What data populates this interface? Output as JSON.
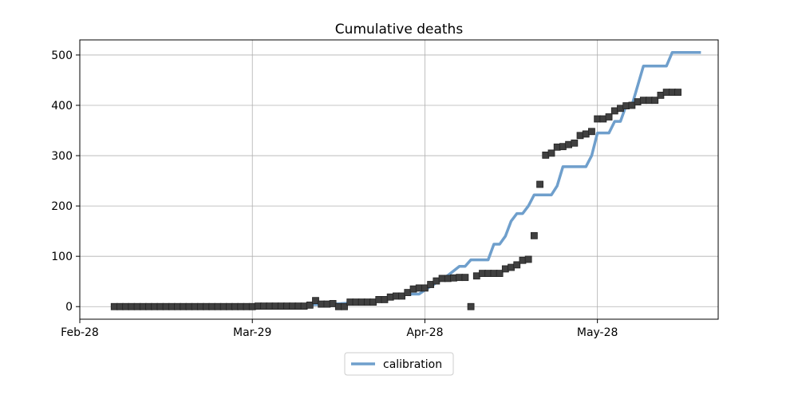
{
  "chart_data": {
    "type": "line",
    "title": "Cumulative deaths",
    "xlabel": "",
    "ylabel": "",
    "x_ticks": [
      {
        "date": "2020-02-28",
        "label": "Feb-28"
      },
      {
        "date": "2020-03-29",
        "label": "Mar-29"
      },
      {
        "date": "2020-04-28",
        "label": "Apr-28"
      },
      {
        "date": "2020-05-28",
        "label": "May-28"
      }
    ],
    "xlim": [
      "2020-02-28",
      "2020-06-18"
    ],
    "y_ticks": [
      0,
      100,
      200,
      300,
      400,
      500
    ],
    "ylim": [
      -25,
      530
    ],
    "grid": true,
    "legend_position": "bottom-center",
    "series": [
      {
        "name": "calibration",
        "kind": "line",
        "color": "#6f9fcc",
        "points": [
          [
            "2020-03-05",
            0
          ],
          [
            "2020-03-29",
            0
          ],
          [
            "2020-04-05",
            3
          ],
          [
            "2020-04-12",
            5
          ],
          [
            "2020-04-19",
            10
          ],
          [
            "2020-04-25",
            25
          ],
          [
            "2020-04-27",
            25
          ],
          [
            "2020-04-28",
            33
          ],
          [
            "2020-05-02",
            62
          ],
          [
            "2020-05-04",
            80
          ],
          [
            "2020-05-05",
            80
          ],
          [
            "2020-05-06",
            93
          ],
          [
            "2020-05-09",
            93
          ],
          [
            "2020-05-10",
            124
          ],
          [
            "2020-05-11",
            124
          ],
          [
            "2020-05-12",
            140
          ],
          [
            "2020-05-13",
            170
          ],
          [
            "2020-05-14",
            185
          ],
          [
            "2020-05-15",
            185
          ],
          [
            "2020-05-16",
            200
          ],
          [
            "2020-05-17",
            222
          ],
          [
            "2020-05-20",
            222
          ],
          [
            "2020-05-21",
            240
          ],
          [
            "2020-05-22",
            278
          ],
          [
            "2020-05-26",
            278
          ],
          [
            "2020-05-27",
            300
          ],
          [
            "2020-05-28",
            345
          ],
          [
            "2020-05-30",
            345
          ],
          [
            "2020-05-31",
            368
          ],
          [
            "2020-06-01",
            368
          ],
          [
            "2020-06-02",
            400
          ],
          [
            "2020-06-03",
            400
          ],
          [
            "2020-06-05",
            478
          ],
          [
            "2020-06-09",
            478
          ],
          [
            "2020-06-10",
            505
          ],
          [
            "2020-06-15",
            505
          ]
        ]
      },
      {
        "name": "",
        "kind": "markers",
        "color": "#404040",
        "points": [
          [
            "2020-03-05",
            0
          ],
          [
            "2020-03-06",
            0
          ],
          [
            "2020-03-07",
            0
          ],
          [
            "2020-03-08",
            0
          ],
          [
            "2020-03-09",
            0
          ],
          [
            "2020-03-10",
            0
          ],
          [
            "2020-03-11",
            0
          ],
          [
            "2020-03-12",
            0
          ],
          [
            "2020-03-13",
            0
          ],
          [
            "2020-03-14",
            0
          ],
          [
            "2020-03-15",
            0
          ],
          [
            "2020-03-16",
            0
          ],
          [
            "2020-03-17",
            0
          ],
          [
            "2020-03-18",
            0
          ],
          [
            "2020-03-19",
            0
          ],
          [
            "2020-03-20",
            0
          ],
          [
            "2020-03-21",
            0
          ],
          [
            "2020-03-22",
            0
          ],
          [
            "2020-03-23",
            0
          ],
          [
            "2020-03-24",
            0
          ],
          [
            "2020-03-25",
            0
          ],
          [
            "2020-03-26",
            0
          ],
          [
            "2020-03-27",
            0
          ],
          [
            "2020-03-28",
            0
          ],
          [
            "2020-03-29",
            0
          ],
          [
            "2020-03-30",
            1
          ],
          [
            "2020-03-31",
            1
          ],
          [
            "2020-04-01",
            1
          ],
          [
            "2020-04-02",
            1
          ],
          [
            "2020-04-03",
            1
          ],
          [
            "2020-04-04",
            1
          ],
          [
            "2020-04-05",
            1
          ],
          [
            "2020-04-06",
            1
          ],
          [
            "2020-04-07",
            1
          ],
          [
            "2020-04-08",
            3
          ],
          [
            "2020-04-09",
            12
          ],
          [
            "2020-04-10",
            5
          ],
          [
            "2020-04-11",
            5
          ],
          [
            "2020-04-12",
            6
          ],
          [
            "2020-04-13",
            0
          ],
          [
            "2020-04-14",
            0
          ],
          [
            "2020-04-15",
            9
          ],
          [
            "2020-04-16",
            9
          ],
          [
            "2020-04-17",
            9
          ],
          [
            "2020-04-18",
            9
          ],
          [
            "2020-04-19",
            9
          ],
          [
            "2020-04-20",
            14
          ],
          [
            "2020-04-21",
            14
          ],
          [
            "2020-04-22",
            19
          ],
          [
            "2020-04-23",
            21
          ],
          [
            "2020-04-24",
            21
          ],
          [
            "2020-04-25",
            28
          ],
          [
            "2020-04-26",
            35
          ],
          [
            "2020-04-27",
            37
          ],
          [
            "2020-04-28",
            37
          ],
          [
            "2020-04-29",
            44
          ],
          [
            "2020-04-30",
            51
          ],
          [
            "2020-05-01",
            56
          ],
          [
            "2020-05-02",
            56
          ],
          [
            "2020-05-03",
            57
          ],
          [
            "2020-05-04",
            58
          ],
          [
            "2020-05-05",
            58
          ],
          [
            "2020-05-06",
            0
          ],
          [
            "2020-05-07",
            61
          ],
          [
            "2020-05-08",
            66
          ],
          [
            "2020-05-09",
            66
          ],
          [
            "2020-05-10",
            66
          ],
          [
            "2020-05-11",
            66
          ],
          [
            "2020-05-12",
            75
          ],
          [
            "2020-05-13",
            78
          ],
          [
            "2020-05-14",
            83
          ],
          [
            "2020-05-15",
            92
          ],
          [
            "2020-05-16",
            94
          ],
          [
            "2020-05-17",
            141
          ],
          [
            "2020-05-18",
            243
          ],
          [
            "2020-05-19",
            301
          ],
          [
            "2020-05-20",
            305
          ],
          [
            "2020-05-21",
            317
          ],
          [
            "2020-05-22",
            318
          ],
          [
            "2020-05-23",
            322
          ],
          [
            "2020-05-24",
            325
          ],
          [
            "2020-05-25",
            340
          ],
          [
            "2020-05-26",
            343
          ],
          [
            "2020-05-27",
            348
          ],
          [
            "2020-05-28",
            373
          ],
          [
            "2020-05-29",
            373
          ],
          [
            "2020-05-30",
            377
          ],
          [
            "2020-05-31",
            389
          ],
          [
            "2020-06-01",
            394
          ],
          [
            "2020-06-02",
            399
          ],
          [
            "2020-06-03",
            400
          ],
          [
            "2020-06-04",
            407
          ],
          [
            "2020-06-05",
            410
          ],
          [
            "2020-06-06",
            410
          ],
          [
            "2020-06-07",
            410
          ],
          [
            "2020-06-08",
            420
          ],
          [
            "2020-06-09",
            426
          ],
          [
            "2020-06-10",
            426
          ],
          [
            "2020-06-11",
            426
          ]
        ]
      }
    ]
  }
}
